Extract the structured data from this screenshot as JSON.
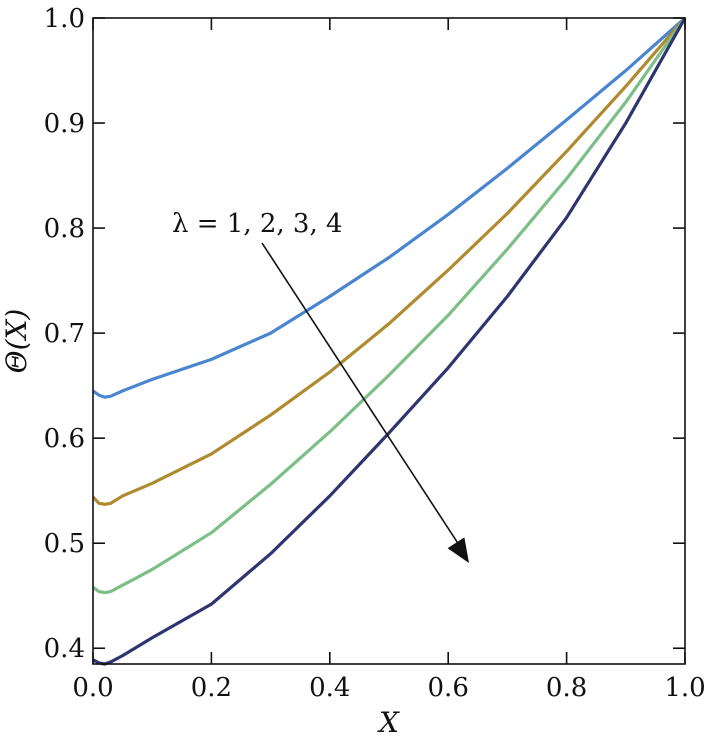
{
  "chart_data": {
    "type": "line",
    "xlabel": "X",
    "ylabel": "Θ(X)",
    "xlim": [
      0.0,
      1.0
    ],
    "ylim": [
      0.385,
      1.0
    ],
    "xticks": [
      "0.0",
      "0.2",
      "0.4",
      "0.6",
      "0.8",
      "1.0"
    ],
    "yticks": [
      "0.4",
      "0.5",
      "0.6",
      "0.7",
      "0.8",
      "0.9",
      "1.0"
    ],
    "grid": false,
    "annotation": "λ = 1, 2, 3, 4",
    "series": [
      {
        "color": "#4a86cf",
        "x": [
          0.0,
          0.01,
          0.02,
          0.03,
          0.05,
          0.1,
          0.2,
          0.3,
          0.4,
          0.5,
          0.6,
          0.7,
          0.8,
          0.9,
          1.0
        ],
        "y": [
          0.645,
          0.641,
          0.639,
          0.64,
          0.645,
          0.656,
          0.675,
          0.7,
          0.735,
          0.772,
          0.813,
          0.857,
          0.903,
          0.95,
          1.0
        ]
      },
      {
        "color": "#b08a2e",
        "x": [
          0.0,
          0.01,
          0.02,
          0.03,
          0.05,
          0.1,
          0.2,
          0.3,
          0.4,
          0.5,
          0.6,
          0.7,
          0.8,
          0.9,
          1.0
        ],
        "y": [
          0.544,
          0.538,
          0.537,
          0.538,
          0.545,
          0.557,
          0.585,
          0.622,
          0.663,
          0.709,
          0.76,
          0.814,
          0.873,
          0.935,
          1.0
        ]
      },
      {
        "color": "#7bbf86",
        "x": [
          0.0,
          0.01,
          0.02,
          0.03,
          0.05,
          0.1,
          0.2,
          0.3,
          0.4,
          0.5,
          0.6,
          0.7,
          0.8,
          0.9,
          1.0
        ],
        "y": [
          0.458,
          0.454,
          0.453,
          0.454,
          0.46,
          0.475,
          0.51,
          0.556,
          0.606,
          0.66,
          0.717,
          0.78,
          0.847,
          0.92,
          1.0
        ]
      },
      {
        "color": "#2e3570",
        "x": [
          0.0,
          0.01,
          0.02,
          0.03,
          0.05,
          0.1,
          0.2,
          0.3,
          0.4,
          0.5,
          0.6,
          0.7,
          0.8,
          0.9,
          1.0
        ],
        "y": [
          0.389,
          0.386,
          0.385,
          0.387,
          0.393,
          0.41,
          0.442,
          0.49,
          0.545,
          0.605,
          0.667,
          0.735,
          0.81,
          0.9,
          1.0
        ]
      }
    ]
  }
}
